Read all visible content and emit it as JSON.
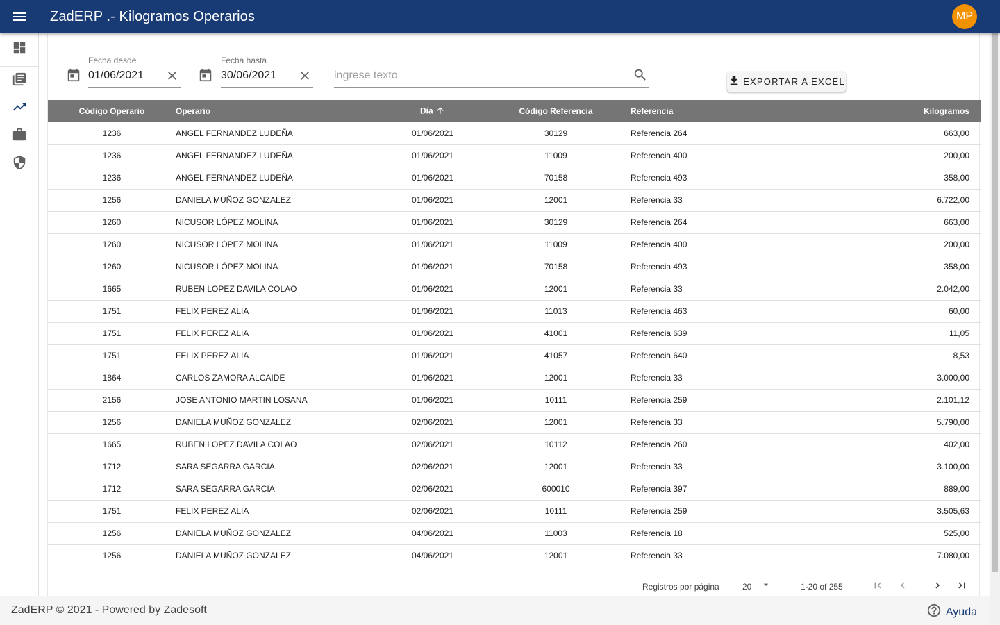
{
  "app": {
    "title": "ZadERP .- Kilogramos Operarios",
    "user_initials": "MP",
    "avatar_color": "#f39200",
    "brand_color": "#183a75"
  },
  "sidebar": {
    "items": [
      "dashboard-icon",
      "library-books-icon",
      "trending-up-icon",
      "work-icon",
      "security-icon"
    ]
  },
  "filters": {
    "fecha_desde_label": "Fecha desde",
    "fecha_desde_value": "01/06/2021",
    "fecha_hasta_label": "Fecha hasta",
    "fecha_hasta_value": "30/06/2021",
    "search_placeholder": "ingrese texto"
  },
  "toolbar": {
    "export_label": "EXPORTAR A EXCEL"
  },
  "table": {
    "headers": [
      "Código Operario",
      "Operario",
      "Día",
      "Código Referencia",
      "Referencia",
      "Kilogramos"
    ],
    "rows": [
      [
        "1236",
        "ANGEL FERNANDEZ LUDEÑA",
        "01/06/2021",
        "30129",
        "Referencia 264",
        "663,00"
      ],
      [
        "1236",
        "ANGEL FERNANDEZ LUDEÑA",
        "01/06/2021",
        "11009",
        "Referencia 400",
        "200,00"
      ],
      [
        "1236",
        "ANGEL FERNANDEZ LUDEÑA",
        "01/06/2021",
        "70158",
        "Referencia 493",
        "358,00"
      ],
      [
        "1256",
        "DANIELA MUÑOZ GONZALEZ",
        "01/06/2021",
        "12001",
        "Referencia 33",
        "6.722,00"
      ],
      [
        "1260",
        "NICUSOR LÓPEZ MOLINA",
        "01/06/2021",
        "30129",
        "Referencia 264",
        "663,00"
      ],
      [
        "1260",
        "NICUSOR LÓPEZ MOLINA",
        "01/06/2021",
        "11009",
        "Referencia 400",
        "200,00"
      ],
      [
        "1260",
        "NICUSOR LÓPEZ MOLINA",
        "01/06/2021",
        "70158",
        "Referencia 493",
        "358,00"
      ],
      [
        "1665",
        "RUBEN LOPEZ DAVILA COLAO",
        "01/06/2021",
        "12001",
        "Referencia 33",
        "2.042,00"
      ],
      [
        "1751",
        "FELIX PEREZ ALIA",
        "01/06/2021",
        "11013",
        "Referencia 463",
        "60,00"
      ],
      [
        "1751",
        "FELIX PEREZ ALIA",
        "01/06/2021",
        "41001",
        "Referencia 639",
        "11,05"
      ],
      [
        "1751",
        "FELIX PEREZ ALIA",
        "01/06/2021",
        "41057",
        "Referencia 640",
        "8,53"
      ],
      [
        "1864",
        "CARLOS ZAMORA ALCAIDE",
        "01/06/2021",
        "12001",
        "Referencia 33",
        "3.000,00"
      ],
      [
        "2156",
        "JOSE ANTONIO MARTIN LOSANA",
        "01/06/2021",
        "10111",
        "Referencia 259",
        "2.101,12"
      ],
      [
        "1256",
        "DANIELA MUÑOZ GONZALEZ",
        "02/06/2021",
        "12001",
        "Referencia 33",
        "5.790,00"
      ],
      [
        "1665",
        "RUBEN LOPEZ DAVILA COLAO",
        "02/06/2021",
        "10112",
        "Referencia 260",
        "402,00"
      ],
      [
        "1712",
        "SARA SEGARRA GARCIA",
        "02/06/2021",
        "12001",
        "Referencia 33",
        "3.100,00"
      ],
      [
        "1712",
        "SARA SEGARRA GARCIA",
        "02/06/2021",
        "600010",
        "Referencia 397",
        "889,00"
      ],
      [
        "1751",
        "FELIX PEREZ ALIA",
        "02/06/2021",
        "10111",
        "Referencia 259",
        "3.505,63"
      ],
      [
        "1256",
        "DANIELA MUÑOZ GONZALEZ",
        "04/06/2021",
        "11003",
        "Referencia 18",
        "525,00"
      ],
      [
        "1256",
        "DANIELA MUÑOZ GONZALEZ",
        "04/06/2021",
        "12001",
        "Referencia 33",
        "7.080,00"
      ]
    ]
  },
  "pagination": {
    "rows_per_page_label": "Registros por página",
    "rows_per_page_value": "20",
    "range": "1-20 of 255"
  },
  "footer": {
    "copyright": "ZadERP © 2021 - Powered by Zadesoft",
    "help_label": "Ayuda"
  }
}
